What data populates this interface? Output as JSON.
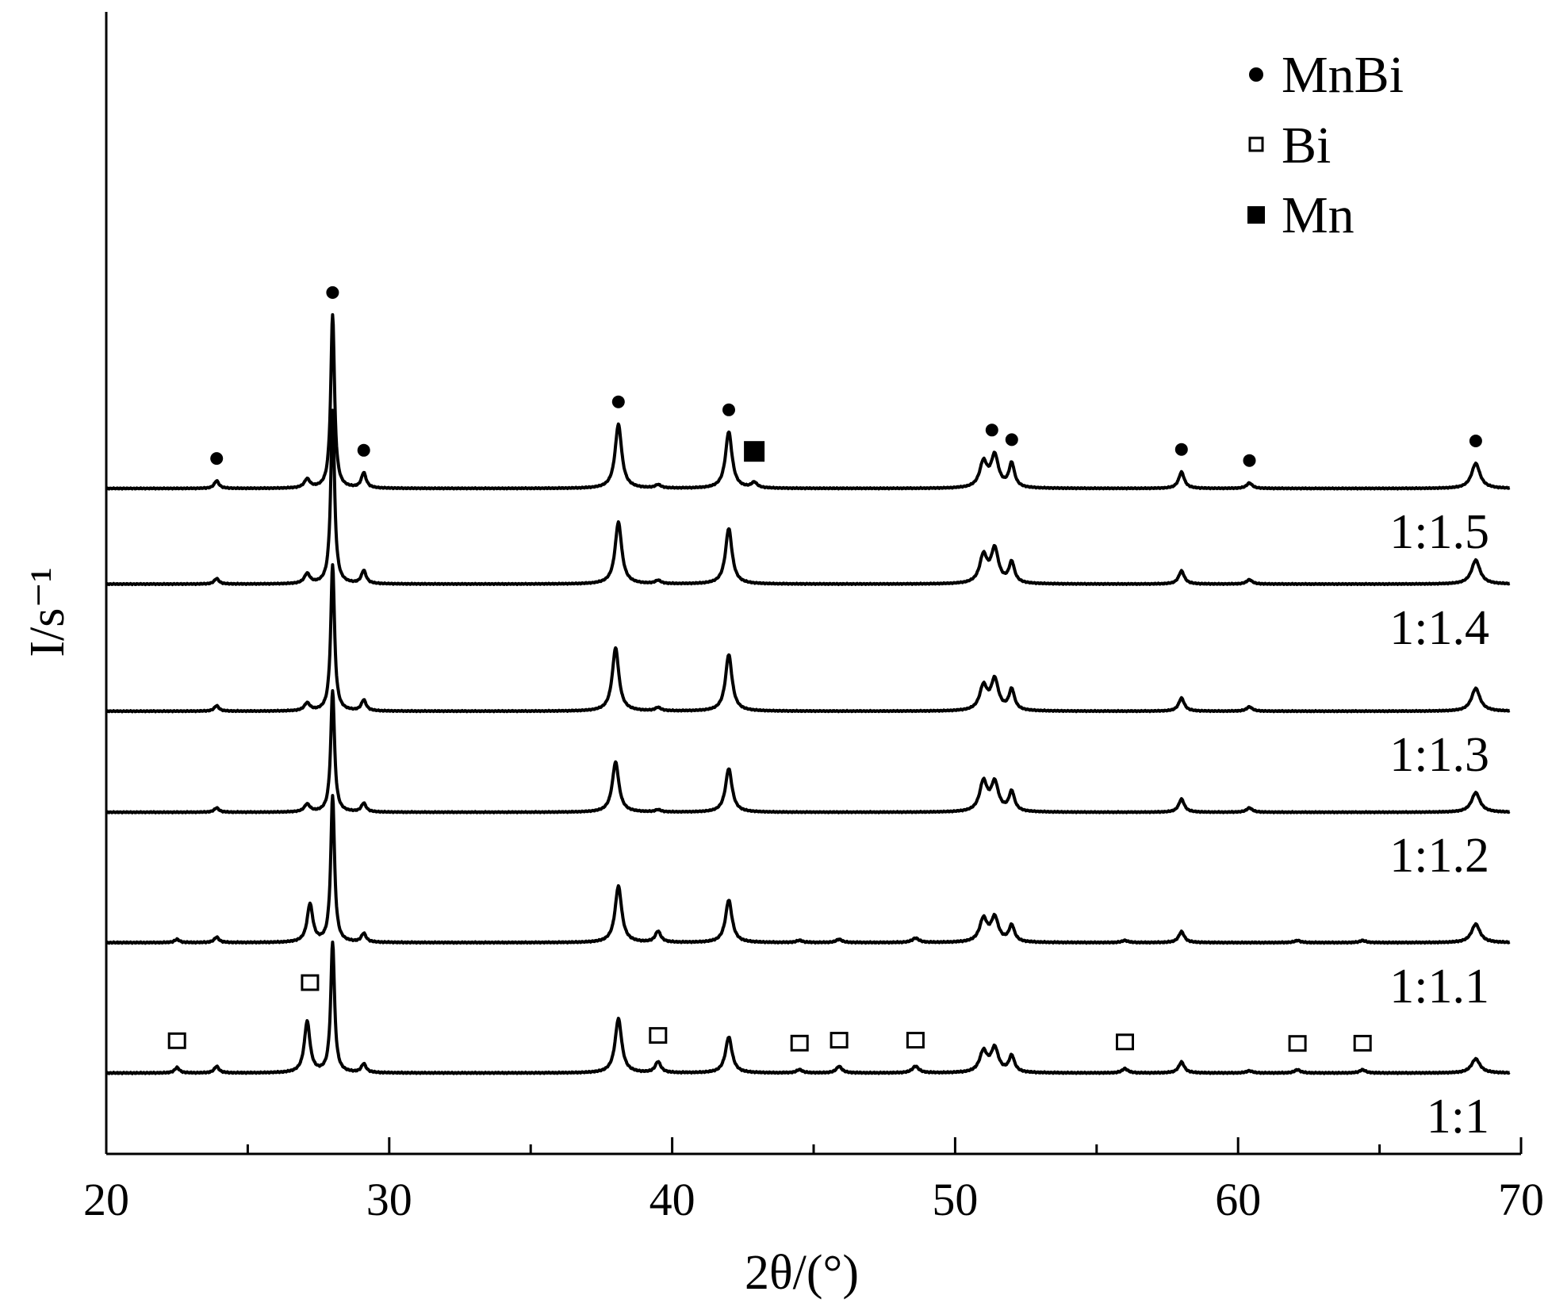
{
  "chart_data": {
    "type": "line",
    "xlabel": "2θ/(°)",
    "ylabel": "I/s⁻¹",
    "xlim": [
      20,
      70
    ],
    "x_ticks": [
      "20",
      "30",
      "40",
      "50",
      "60",
      "70"
    ],
    "y_ticks_shown": false,
    "legend": {
      "placement": "top-right",
      "entries": [
        {
          "marker": "filled-circle",
          "label": "MnBi"
        },
        {
          "marker": "open-square",
          "label": "Bi"
        },
        {
          "marker": "filled-square",
          "label": "Mn"
        }
      ]
    },
    "series": [
      {
        "name": "1:1",
        "offset": 0.0,
        "noise": 0.006,
        "peaks": [
          [
            22.5,
            0.05,
            0.1
          ],
          [
            23.9,
            0.06,
            0.1
          ],
          [
            27.1,
            0.47,
            0.12
          ],
          [
            28.0,
            1.2,
            0.08
          ],
          [
            29.1,
            0.08,
            0.1
          ],
          [
            38.1,
            0.5,
            0.14
          ],
          [
            39.5,
            0.1,
            0.12
          ],
          [
            42.0,
            0.33,
            0.14
          ],
          [
            44.5,
            0.03,
            0.12
          ],
          [
            45.9,
            0.06,
            0.12
          ],
          [
            48.6,
            0.06,
            0.14
          ],
          [
            51.0,
            0.19,
            0.16
          ],
          [
            51.4,
            0.22,
            0.16
          ],
          [
            52.0,
            0.15,
            0.12
          ],
          [
            56.0,
            0.04,
            0.12
          ],
          [
            58.0,
            0.1,
            0.12
          ],
          [
            60.4,
            0.02,
            0.12
          ],
          [
            62.1,
            0.03,
            0.12
          ],
          [
            64.4,
            0.03,
            0.12
          ],
          [
            68.4,
            0.13,
            0.18
          ]
        ]
      },
      {
        "name": "1:1.1",
        "offset": 1.2,
        "noise": 0.006,
        "peaks": [
          [
            22.5,
            0.03,
            0.1
          ],
          [
            23.9,
            0.05,
            0.1
          ],
          [
            27.2,
            0.35,
            0.12
          ],
          [
            28.0,
            1.35,
            0.08
          ],
          [
            29.1,
            0.08,
            0.1
          ],
          [
            38.1,
            0.52,
            0.14
          ],
          [
            39.5,
            0.1,
            0.12
          ],
          [
            42.0,
            0.39,
            0.14
          ],
          [
            44.5,
            0.02,
            0.12
          ],
          [
            45.9,
            0.03,
            0.12
          ],
          [
            48.6,
            0.04,
            0.14
          ],
          [
            51.0,
            0.21,
            0.16
          ],
          [
            51.4,
            0.22,
            0.16
          ],
          [
            52.0,
            0.15,
            0.12
          ],
          [
            56.0,
            0.02,
            0.12
          ],
          [
            58.0,
            0.1,
            0.12
          ],
          [
            62.1,
            0.02,
            0.12
          ],
          [
            64.4,
            0.02,
            0.12
          ],
          [
            68.4,
            0.17,
            0.18
          ]
        ]
      },
      {
        "name": "1:1.2",
        "offset": 2.4,
        "noise": 0.005,
        "peaks": [
          [
            23.9,
            0.04,
            0.1
          ],
          [
            27.1,
            0.07,
            0.12
          ],
          [
            28.0,
            1.12,
            0.08
          ],
          [
            29.1,
            0.08,
            0.1
          ],
          [
            38.0,
            0.46,
            0.14
          ],
          [
            39.5,
            0.02,
            0.12
          ],
          [
            42.0,
            0.4,
            0.14
          ],
          [
            51.0,
            0.27,
            0.16
          ],
          [
            51.4,
            0.26,
            0.16
          ],
          [
            52.0,
            0.18,
            0.12
          ],
          [
            58.0,
            0.12,
            0.12
          ],
          [
            60.4,
            0.04,
            0.12
          ],
          [
            68.4,
            0.18,
            0.18
          ]
        ]
      },
      {
        "name": "1:1.3",
        "offset": 3.33,
        "noise": 0.005,
        "peaks": [
          [
            23.9,
            0.05,
            0.1
          ],
          [
            27.1,
            0.07,
            0.12
          ],
          [
            28.0,
            1.35,
            0.08
          ],
          [
            29.1,
            0.1,
            0.1
          ],
          [
            38.0,
            0.58,
            0.14
          ],
          [
            39.5,
            0.03,
            0.12
          ],
          [
            42.0,
            0.52,
            0.14
          ],
          [
            51.0,
            0.22,
            0.16
          ],
          [
            51.4,
            0.28,
            0.16
          ],
          [
            52.0,
            0.19,
            0.12
          ],
          [
            58.0,
            0.12,
            0.12
          ],
          [
            60.4,
            0.04,
            0.12
          ],
          [
            68.4,
            0.21,
            0.18
          ]
        ]
      },
      {
        "name": "1:1.4",
        "offset": 4.5,
        "noise": 0.005,
        "peaks": [
          [
            23.9,
            0.05,
            0.1
          ],
          [
            27.1,
            0.09,
            0.12
          ],
          [
            28.0,
            1.6,
            0.08
          ],
          [
            29.1,
            0.12,
            0.1
          ],
          [
            38.1,
            0.57,
            0.14
          ],
          [
            39.5,
            0.03,
            0.12
          ],
          [
            42.0,
            0.51,
            0.14
          ],
          [
            51.0,
            0.25,
            0.16
          ],
          [
            51.4,
            0.31,
            0.16
          ],
          [
            52.0,
            0.19,
            0.12
          ],
          [
            58.0,
            0.12,
            0.12
          ],
          [
            60.4,
            0.04,
            0.12
          ],
          [
            68.4,
            0.22,
            0.18
          ]
        ]
      },
      {
        "name": "1:1.5",
        "offset": 5.38,
        "noise": 0.005,
        "peaks": [
          [
            23.9,
            0.07,
            0.1
          ],
          [
            27.1,
            0.08,
            0.12
          ],
          [
            28.0,
            1.6,
            0.08
          ],
          [
            29.1,
            0.14,
            0.1
          ],
          [
            38.1,
            0.59,
            0.14
          ],
          [
            39.5,
            0.03,
            0.12
          ],
          [
            42.0,
            0.52,
            0.14
          ],
          [
            42.9,
            0.05,
            0.12
          ],
          [
            51.0,
            0.23,
            0.16
          ],
          [
            51.4,
            0.29,
            0.16
          ],
          [
            52.0,
            0.22,
            0.12
          ],
          [
            58.0,
            0.15,
            0.12
          ],
          [
            60.4,
            0.05,
            0.12
          ],
          [
            68.4,
            0.23,
            0.18
          ]
        ]
      }
    ],
    "peak_markers": {
      "MnBi": [
        23.9,
        28.0,
        29.1,
        38.1,
        42.0,
        51.3,
        52.0,
        58.0,
        60.4,
        68.4
      ],
      "Bi": [
        22.5,
        27.2,
        39.5,
        44.5,
        45.9,
        48.6,
        56.0,
        62.1,
        64.4
      ],
      "Mn": [
        42.9
      ]
    }
  }
}
